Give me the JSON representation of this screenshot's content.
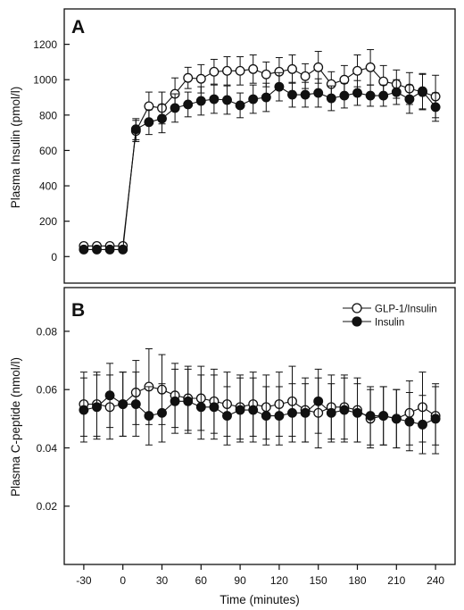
{
  "xlabel": "Time (minutes)",
  "x_ticks": [
    -30,
    0,
    30,
    60,
    90,
    120,
    150,
    180,
    210,
    240
  ],
  "chart_data": [
    {
      "panel_letter": "A",
      "type": "line",
      "ylabel": "Plasma Insulin (pmol/l)",
      "ylim": [
        -150,
        1400
      ],
      "y_ticks": [
        0,
        200,
        400,
        600,
        800,
        1000,
        1200
      ],
      "y_tick_labels": [
        "0",
        "200",
        "400",
        "600",
        "800",
        "1000",
        "1200"
      ],
      "xlim": [
        -45,
        255
      ],
      "legend": null,
      "series": [
        {
          "marker": "open",
          "x": [
            -30,
            -20,
            -10,
            0,
            10,
            20,
            30,
            40,
            50,
            60,
            70,
            80,
            90,
            100,
            110,
            120,
            130,
            140,
            150,
            160,
            170,
            180,
            190,
            200,
            210,
            220,
            230,
            240
          ],
          "y": [
            60,
            60,
            60,
            60,
            710,
            850,
            840,
            920,
            1010,
            1005,
            1045,
            1050,
            1050,
            1060,
            1030,
            1045,
            1060,
            1020,
            1070,
            975,
            1000,
            1050,
            1070,
            990,
            975,
            950,
            930,
            905
          ],
          "err": [
            0,
            0,
            0,
            0,
            60,
            80,
            90,
            90,
            60,
            80,
            70,
            80,
            80,
            80,
            70,
            80,
            80,
            70,
            90,
            70,
            80,
            90,
            100,
            90,
            80,
            90,
            100,
            120
          ]
        },
        {
          "marker": "filled",
          "x": [
            -30,
            -20,
            -10,
            0,
            10,
            20,
            30,
            40,
            50,
            60,
            70,
            80,
            90,
            100,
            110,
            120,
            130,
            140,
            150,
            160,
            170,
            180,
            190,
            200,
            210,
            220,
            230,
            240
          ],
          "y": [
            40,
            40,
            40,
            40,
            720,
            760,
            780,
            840,
            860,
            880,
            890,
            885,
            855,
            890,
            900,
            960,
            915,
            915,
            925,
            895,
            910,
            925,
            910,
            910,
            930,
            890,
            935,
            845
          ],
          "err": [
            0,
            0,
            0,
            0,
            60,
            70,
            80,
            80,
            70,
            80,
            80,
            80,
            70,
            80,
            80,
            80,
            70,
            70,
            80,
            70,
            70,
            70,
            60,
            60,
            70,
            80,
            100,
            80
          ]
        }
      ]
    },
    {
      "panel_letter": "B",
      "type": "line",
      "ylabel": "Plasma C-peptide (nmol/l)",
      "ylim": [
        0,
        0.095
      ],
      "y_ticks": [
        0.02,
        0.04,
        0.06,
        0.08
      ],
      "y_tick_labels": [
        "0.02",
        "0.04",
        "0.06",
        "0.08"
      ],
      "xlim": [
        -45,
        255
      ],
      "legend": {
        "position": "top-right",
        "entries": [
          {
            "label": "GLP-1/Insulin",
            "marker": "open"
          },
          {
            "label": "Insulin",
            "marker": "filled"
          }
        ]
      },
      "series": [
        {
          "marker": "open",
          "x": [
            -30,
            -20,
            -10,
            0,
            10,
            20,
            30,
            40,
            50,
            60,
            70,
            80,
            90,
            100,
            110,
            120,
            130,
            140,
            150,
            160,
            170,
            180,
            190,
            200,
            210,
            220,
            230,
            240
          ],
          "y": [
            0.055,
            0.055,
            0.054,
            0.055,
            0.059,
            0.061,
            0.06,
            0.058,
            0.057,
            0.057,
            0.056,
            0.055,
            0.054,
            0.055,
            0.054,
            0.055,
            0.056,
            0.053,
            0.052,
            0.054,
            0.054,
            0.053,
            0.05,
            0.051,
            0.05,
            0.052,
            0.054,
            0.051
          ],
          "err": [
            0.011,
            0.011,
            0.011,
            0.011,
            0.011,
            0.013,
            0.012,
            0.011,
            0.011,
            0.011,
            0.011,
            0.011,
            0.011,
            0.011,
            0.011,
            0.011,
            0.012,
            0.011,
            0.012,
            0.011,
            0.011,
            0.011,
            0.01,
            0.01,
            0.01,
            0.011,
            0.012,
            0.01
          ]
        },
        {
          "marker": "filled",
          "x": [
            -30,
            -20,
            -10,
            0,
            10,
            20,
            30,
            40,
            50,
            60,
            70,
            80,
            90,
            100,
            110,
            120,
            130,
            140,
            150,
            160,
            170,
            180,
            190,
            200,
            210,
            220,
            230,
            240
          ],
          "y": [
            0.053,
            0.054,
            0.058,
            0.055,
            0.055,
            0.051,
            0.052,
            0.056,
            0.056,
            0.054,
            0.054,
            0.051,
            0.053,
            0.053,
            0.051,
            0.051,
            0.052,
            0.052,
            0.056,
            0.052,
            0.053,
            0.052,
            0.051,
            0.051,
            0.05,
            0.049,
            0.048,
            0.05
          ],
          "err": [
            0.011,
            0.011,
            0.011,
            0.011,
            0.011,
            0.01,
            0.01,
            0.011,
            0.011,
            0.011,
            0.011,
            0.01,
            0.011,
            0.011,
            0.01,
            0.01,
            0.01,
            0.01,
            0.011,
            0.01,
            0.011,
            0.01,
            0.01,
            0.01,
            0.01,
            0.01,
            0.01,
            0.012
          ]
        }
      ]
    }
  ]
}
